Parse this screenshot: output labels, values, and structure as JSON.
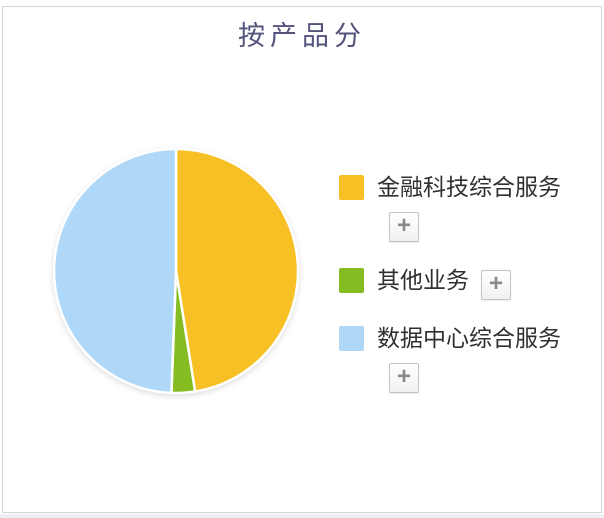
{
  "title": "按产品分",
  "chart_data": {
    "type": "pie",
    "title": "按产品分",
    "labels": [
      "金融科技综合服务",
      "其他业务",
      "数据中心综合服务"
    ],
    "values": [
      47.5,
      3.1,
      49.4
    ],
    "unit": "%",
    "colors": [
      "#F7C024",
      "#85BC22",
      "#AFD8F8"
    ],
    "start_angle": "top",
    "direction": "clockwise",
    "legend_position": "right",
    "slice_border_color": "#FFFFFF",
    "slice_border_width": 2.5
  },
  "legend": {
    "items": [
      {
        "label": "金融科技综合服务",
        "color": "#F7C024",
        "add_button_label": "+"
      },
      {
        "label": "其他业务",
        "color": "#85BC22",
        "add_button_label": "+"
      },
      {
        "label": "数据中心综合服务",
        "color": "#AFD8F8",
        "add_button_label": "+"
      }
    ]
  },
  "colors": {
    "title_text": "#53537C",
    "legend_text": "#303030",
    "panel_border": "#D4D4DA",
    "plus_button_border": "#C3C3C3",
    "plus_icon": "#8A8A8A",
    "background": "#FFFFFF"
  }
}
